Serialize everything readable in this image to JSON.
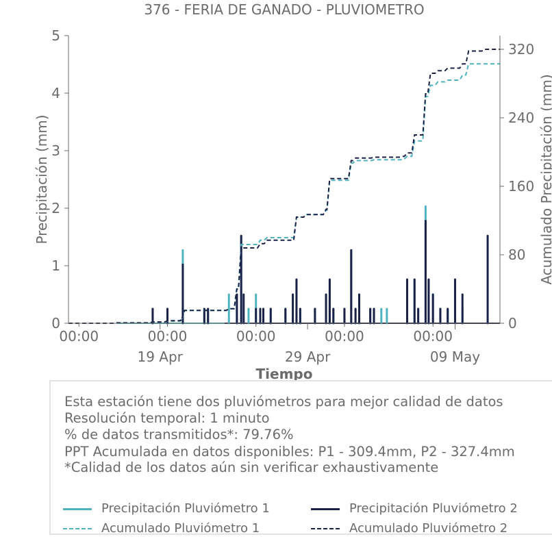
{
  "chart_data": {
    "type": "line",
    "title": "376 - FERIA DE GANADO - PLUVIOMETRO",
    "xlabel": "Tiempo",
    "ylabel": "Precipitación (mm)",
    "y2label": "Acumulado Precipitación (mm)",
    "ylim": [
      0,
      5
    ],
    "y2lim": [
      0,
      336
    ],
    "xlim": [
      "2025-04-12T19:00",
      "2025-05-12T01:00"
    ],
    "y_ticks": [
      0,
      1,
      2,
      3,
      4,
      5
    ],
    "y2_ticks": [
      0,
      80,
      160,
      240,
      320
    ],
    "x_minor_ticks": [
      {
        "t": "2025-04-13T12:00",
        "label": "00:00"
      },
      {
        "t": "2025-04-19T12:00",
        "label": "00:00"
      },
      {
        "t": "2025-04-25T12:00",
        "label": "00:00"
      },
      {
        "t": "2025-05-01T12:00",
        "label": "00:00"
      },
      {
        "t": "2025-05-07T12:00",
        "label": "00:00"
      }
    ],
    "x_major_ticks": [
      {
        "t": "2025-04-19T00:00",
        "label": "19 Apr"
      },
      {
        "t": "2025-04-29T00:00",
        "label": "29 Apr"
      },
      {
        "t": "2025-05-09T00:00",
        "label": "09 May"
      }
    ],
    "grid": false,
    "colors": {
      "p1": "#4fb3bf",
      "p2": "#1b2147"
    },
    "series": [
      {
        "name": "Precipitación Pluviómetro 1",
        "kind": "spikes",
        "axis": "left",
        "color": "#4fb3bf",
        "points": [
          [
            "2025-04-18T12:00",
            0.25
          ],
          [
            "2025-04-19T12:00",
            0.25
          ],
          [
            "2025-04-20T13:00",
            1.27
          ],
          [
            "2025-04-22T00:00",
            0.25
          ],
          [
            "2025-04-22T06:00",
            0.25
          ],
          [
            "2025-04-23T16:00",
            0.5
          ],
          [
            "2025-04-24T05:00",
            0.5
          ],
          [
            "2025-04-24T12:00",
            1.52
          ],
          [
            "2025-04-25T00:00",
            0.25
          ],
          [
            "2025-04-25T12:00",
            0.5
          ],
          [
            "2025-04-25T19:00",
            0.25
          ],
          [
            "2025-04-26T00:00",
            0.25
          ],
          [
            "2025-04-26T12:00",
            0.25
          ],
          [
            "2025-04-27T12:00",
            0.25
          ],
          [
            "2025-04-28T00:00",
            0.5
          ],
          [
            "2025-04-28T06:00",
            0.76
          ],
          [
            "2025-04-28T12:00",
            0.25
          ],
          [
            "2025-04-29T12:00",
            0.25
          ],
          [
            "2025-04-30T06:00",
            0.5
          ],
          [
            "2025-04-30T12:00",
            0.76
          ],
          [
            "2025-04-30T18:00",
            0.25
          ],
          [
            "2025-05-01T12:00",
            0.25
          ],
          [
            "2025-05-01T23:00",
            1.27
          ],
          [
            "2025-05-02T06:00",
            0.25
          ],
          [
            "2025-05-02T12:00",
            0.5
          ],
          [
            "2025-05-03T06:00",
            0.25
          ],
          [
            "2025-05-03T12:00",
            0.25
          ],
          [
            "2025-05-04T00:00",
            0.25
          ],
          [
            "2025-05-04T09:00",
            0.25
          ],
          [
            "2025-05-05T18:00",
            0.76
          ],
          [
            "2025-05-06T06:00",
            0.76
          ],
          [
            "2025-05-06T12:00",
            0.25
          ],
          [
            "2025-05-07T00:00",
            2.03
          ],
          [
            "2025-05-07T05:00",
            0.76
          ],
          [
            "2025-05-07T12:00",
            0.5
          ],
          [
            "2025-05-08T00:00",
            0.25
          ],
          [
            "2025-05-08T12:00",
            0.25
          ],
          [
            "2025-05-09T00:00",
            0.76
          ],
          [
            "2025-05-09T12:00",
            0.25
          ]
        ]
      },
      {
        "name": "Precipitación Pluviómetro 2",
        "kind": "spikes",
        "axis": "left",
        "color": "#1b2147",
        "points": [
          [
            "2025-04-18T12:00",
            0.25
          ],
          [
            "2025-04-19T12:00",
            0.25
          ],
          [
            "2025-04-20T13:00",
            1.02
          ],
          [
            "2025-04-22T00:00",
            0.25
          ],
          [
            "2025-04-22T06:00",
            0.25
          ],
          [
            "2025-04-24T05:00",
            0.5
          ],
          [
            "2025-04-24T12:00",
            1.52
          ],
          [
            "2025-04-24T16:00",
            0.5
          ],
          [
            "2025-04-25T12:00",
            0.25
          ],
          [
            "2025-04-25T19:00",
            0.25
          ],
          [
            "2025-04-26T00:00",
            0.25
          ],
          [
            "2025-04-26T12:00",
            0.25
          ],
          [
            "2025-04-27T12:00",
            0.25
          ],
          [
            "2025-04-28T00:00",
            0.5
          ],
          [
            "2025-04-28T06:00",
            0.76
          ],
          [
            "2025-04-28T12:00",
            0.25
          ],
          [
            "2025-04-29T12:00",
            0.25
          ],
          [
            "2025-04-30T06:00",
            0.5
          ],
          [
            "2025-04-30T12:00",
            0.76
          ],
          [
            "2025-04-30T18:00",
            0.25
          ],
          [
            "2025-05-01T12:00",
            0.25
          ],
          [
            "2025-05-01T23:00",
            1.27
          ],
          [
            "2025-05-02T06:00",
            0.25
          ],
          [
            "2025-05-02T12:00",
            0.5
          ],
          [
            "2025-05-03T06:00",
            0.25
          ],
          [
            "2025-05-03T12:00",
            0.25
          ],
          [
            "2025-05-05T18:00",
            0.76
          ],
          [
            "2025-05-06T06:00",
            0.76
          ],
          [
            "2025-05-06T12:00",
            0.25
          ],
          [
            "2025-05-07T00:00",
            1.78
          ],
          [
            "2025-05-07T05:00",
            0.76
          ],
          [
            "2025-05-07T12:00",
            0.5
          ],
          [
            "2025-05-08T00:00",
            0.25
          ],
          [
            "2025-05-08T12:00",
            0.25
          ],
          [
            "2025-05-09T00:00",
            0.76
          ],
          [
            "2025-05-09T12:00",
            0.5
          ],
          [
            "2025-05-11T05:00",
            1.52
          ]
        ]
      },
      {
        "name": "Acumulado Pluviómetro 1",
        "kind": "step",
        "axis": "right",
        "color": "#4fb3bf",
        "points": [
          [
            "2025-04-12T19:00",
            0
          ],
          [
            "2025-04-16T00:00",
            0.5
          ],
          [
            "2025-04-18T12:00",
            1.5
          ],
          [
            "2025-04-19T12:00",
            2.5
          ],
          [
            "2025-04-20T13:00",
            4.5
          ],
          [
            "2025-04-20T16:00",
            15
          ],
          [
            "2025-04-23T16:00",
            17
          ],
          [
            "2025-04-24T05:00",
            43
          ],
          [
            "2025-04-24T12:00",
            92
          ],
          [
            "2025-04-25T19:00",
            97
          ],
          [
            "2025-04-26T06:00",
            100
          ],
          [
            "2025-04-28T06:00",
            124
          ],
          [
            "2025-04-28T22:00",
            127
          ],
          [
            "2025-04-30T06:00",
            132
          ],
          [
            "2025-04-30T12:00",
            167
          ],
          [
            "2025-05-01T23:00",
            187
          ],
          [
            "2025-05-02T06:00",
            190
          ],
          [
            "2025-05-03T12:00",
            191
          ],
          [
            "2025-05-05T12:00",
            192
          ],
          [
            "2025-05-05T18:00",
            195
          ],
          [
            "2025-05-06T06:00",
            213
          ],
          [
            "2025-05-07T00:00",
            265
          ],
          [
            "2025-05-07T08:00",
            278
          ],
          [
            "2025-05-07T20:00",
            282
          ],
          [
            "2025-05-08T12:00",
            284
          ],
          [
            "2025-05-09T12:00",
            290
          ],
          [
            "2025-05-09T22:00",
            303
          ],
          [
            "2025-05-12T01:00",
            303
          ]
        ]
      },
      {
        "name": "Acumulado Pluviómetro 2",
        "kind": "step",
        "axis": "right",
        "color": "#1b2147",
        "points": [
          [
            "2025-04-12T19:00",
            0
          ],
          [
            "2025-04-16T00:00",
            0.5
          ],
          [
            "2025-04-18T12:00",
            1.5
          ],
          [
            "2025-04-19T12:00",
            3
          ],
          [
            "2025-04-20T13:00",
            5.5
          ],
          [
            "2025-04-20T16:00",
            15
          ],
          [
            "2025-04-23T16:00",
            17
          ],
          [
            "2025-04-24T05:00",
            40
          ],
          [
            "2025-04-24T12:00",
            88
          ],
          [
            "2025-04-25T19:00",
            93
          ],
          [
            "2025-04-26T06:00",
            97
          ],
          [
            "2025-04-28T06:00",
            124
          ],
          [
            "2025-04-28T22:00",
            127
          ],
          [
            "2025-04-30T06:00",
            133
          ],
          [
            "2025-04-30T12:00",
            169
          ],
          [
            "2025-05-01T23:00",
            190
          ],
          [
            "2025-05-02T06:00",
            193
          ],
          [
            "2025-05-03T12:00",
            194
          ],
          [
            "2025-05-05T12:00",
            195
          ],
          [
            "2025-05-05T18:00",
            199
          ],
          [
            "2025-05-06T06:00",
            220
          ],
          [
            "2025-05-07T00:00",
            268
          ],
          [
            "2025-05-07T08:00",
            292
          ],
          [
            "2025-05-07T20:00",
            295
          ],
          [
            "2025-05-08T12:00",
            298
          ],
          [
            "2025-05-09T12:00",
            303
          ],
          [
            "2025-05-09T22:00",
            318
          ],
          [
            "2025-05-11T00:00",
            320
          ],
          [
            "2025-05-12T01:00",
            320
          ]
        ]
      }
    ]
  },
  "info": {
    "lines": [
      "Esta estación tiene dos pluviómetros para mejor calidad de datos",
      "Resolución temporal: 1 minuto",
      "% de datos transmitidos*: 79.76%",
      "PPT Acumulada en datos disponibles: P1 - 309.4mm, P2 - 327.4mm",
      "*Calidad de los datos aún sin verificar exhaustivamente"
    ]
  },
  "legend": {
    "items": [
      {
        "label": "Precipitación Pluviómetro 1",
        "color": "#4fb3bf",
        "style": "solid"
      },
      {
        "label": "Precipitación Pluviómetro 2",
        "color": "#1b2147",
        "style": "solid"
      },
      {
        "label": "Acumulado Pluviómetro 1",
        "color": "#4fb3bf",
        "style": "dashed"
      },
      {
        "label": "Acumulado Pluviómetro 2",
        "color": "#1b2147",
        "style": "dashed"
      }
    ]
  }
}
